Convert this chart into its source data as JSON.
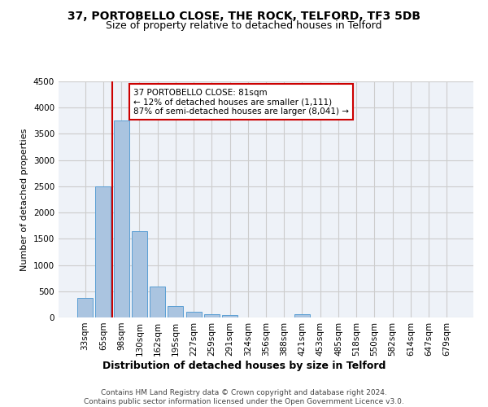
{
  "title1": "37, PORTOBELLO CLOSE, THE ROCK, TELFORD, TF3 5DB",
  "title2": "Size of property relative to detached houses in Telford",
  "xlabel": "Distribution of detached houses by size in Telford",
  "ylabel": "Number of detached properties",
  "categories": [
    "33sqm",
    "65sqm",
    "98sqm",
    "130sqm",
    "162sqm",
    "195sqm",
    "227sqm",
    "259sqm",
    "291sqm",
    "324sqm",
    "356sqm",
    "388sqm",
    "421sqm",
    "453sqm",
    "485sqm",
    "518sqm",
    "550sqm",
    "582sqm",
    "614sqm",
    "647sqm",
    "679sqm"
  ],
  "values": [
    370,
    2500,
    3750,
    1640,
    590,
    225,
    105,
    60,
    40,
    0,
    0,
    0,
    60,
    0,
    0,
    0,
    0,
    0,
    0,
    0,
    0
  ],
  "bar_color": "#aac4e0",
  "bar_edge_color": "#5a9fd4",
  "vline_color": "#cc0000",
  "annotation_text_line1": "37 PORTOBELLO CLOSE: 81sqm",
  "annotation_text_line2": "← 12% of detached houses are smaller (1,111)",
  "annotation_text_line3": "87% of semi-detached houses are larger (8,041) →",
  "annotation_box_color": "#cc0000",
  "ylim": [
    0,
    4500
  ],
  "yticks": [
    0,
    500,
    1000,
    1500,
    2000,
    2500,
    3000,
    3500,
    4000,
    4500
  ],
  "grid_color": "#cccccc",
  "bg_color": "#eef2f8",
  "footer_text": "Contains HM Land Registry data © Crown copyright and database right 2024.\nContains public sector information licensed under the Open Government Licence v3.0.",
  "title1_fontsize": 10,
  "title2_fontsize": 9,
  "xlabel_fontsize": 9,
  "ylabel_fontsize": 8,
  "tick_fontsize": 7.5,
  "footer_fontsize": 6.5,
  "annot_fontsize": 7.5
}
